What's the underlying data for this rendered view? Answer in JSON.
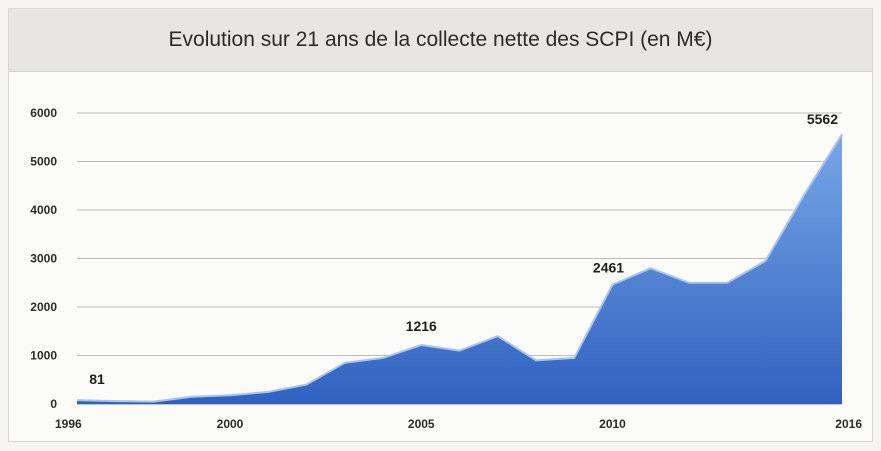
{
  "chart_data": {
    "type": "area",
    "title": "Evolution sur 21 ans de la collecte nette des SCPI (en M€)",
    "xlabel": "",
    "ylabel": "",
    "ylim": [
      0,
      6000
    ],
    "yticks": [
      "0",
      "1000",
      "2000",
      "3000",
      "4000",
      "5000",
      "6000"
    ],
    "xticks": [
      "1996",
      "2000",
      "2005",
      "2010",
      "2016"
    ],
    "grid": true,
    "x": [
      1996,
      1997,
      1998,
      1999,
      2000,
      2001,
      2002,
      2003,
      2004,
      2005,
      2006,
      2007,
      2008,
      2009,
      2010,
      2011,
      2012,
      2013,
      2014,
      2015,
      2016
    ],
    "series": [
      {
        "values": [
          81,
          60,
          50,
          150,
          180,
          250,
          400,
          850,
          950,
          1216,
          1100,
          1400,
          900,
          950,
          2461,
          2800,
          2500,
          2500,
          2950,
          4300,
          5562
        ]
      }
    ],
    "data_labels": [
      {
        "x": 1996,
        "text": "81"
      },
      {
        "x": 2005,
        "text": "1216"
      },
      {
        "x": 2010,
        "text": "2461"
      },
      {
        "x": 2016,
        "text": "5562"
      }
    ],
    "colors": {
      "area_top": "#7aa6e6",
      "area_bottom": "#2f62c0",
      "edge": "#a9c4ee",
      "grid": "#bcbcb8"
    }
  }
}
